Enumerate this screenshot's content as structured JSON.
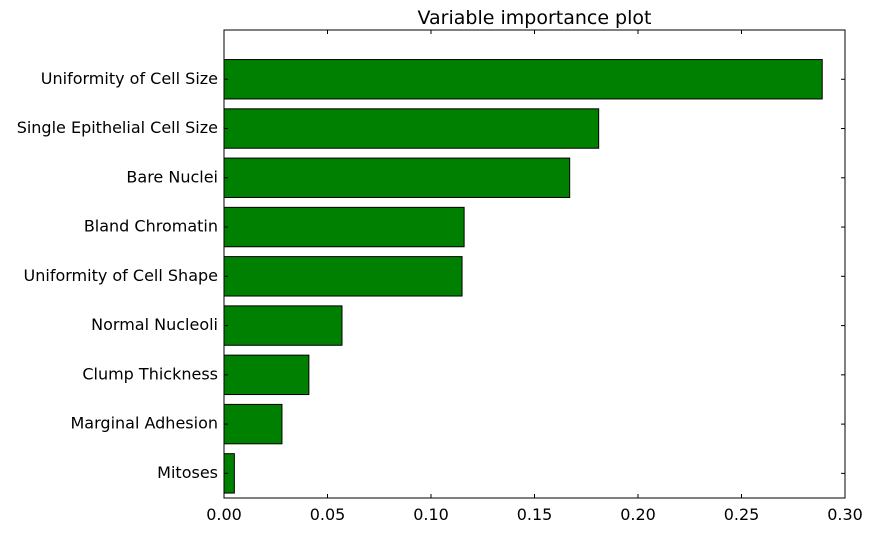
{
  "chart_data": {
    "type": "bar",
    "orientation": "horizontal",
    "title": "Variable importance plot",
    "xlabel": "",
    "ylabel": "",
    "categories": [
      "Uniformity of Cell Size",
      "Single Epithelial Cell Size",
      "Bare Nuclei",
      "Bland Chromatin",
      "Uniformity of Cell Shape",
      "Normal Nucleoli",
      "Clump Thickness",
      "Marginal Adhesion",
      "Mitoses"
    ],
    "values": [
      0.289,
      0.181,
      0.167,
      0.116,
      0.115,
      0.057,
      0.041,
      0.028,
      0.005
    ],
    "xlim": [
      0,
      0.3
    ],
    "xticks": [
      "0.00",
      "0.05",
      "0.10",
      "0.15",
      "0.20",
      "0.25",
      "0.30"
    ],
    "grid": false,
    "legend": "none",
    "bar_color": "#008000",
    "edge_color": "#000000"
  }
}
